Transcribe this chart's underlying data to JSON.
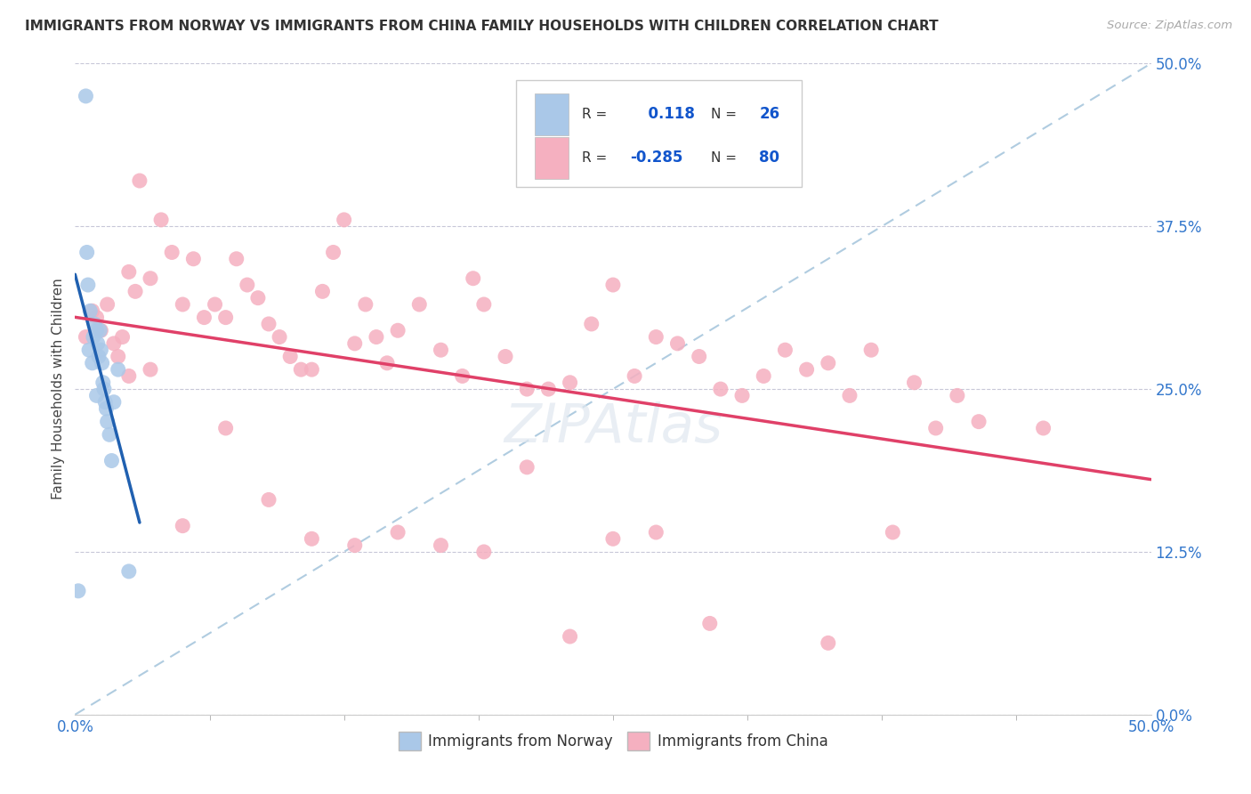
{
  "title": "IMMIGRANTS FROM NORWAY VS IMMIGRANTS FROM CHINA FAMILY HOUSEHOLDS WITH CHILDREN CORRELATION CHART",
  "source": "Source: ZipAtlas.com",
  "ylabel": "Family Households with Children",
  "legend_norway": "Immigrants from Norway",
  "legend_china": "Immigrants from China",
  "R_norway": 0.118,
  "N_norway": 26,
  "R_china": -0.285,
  "N_china": 80,
  "norway_color": "#aac8e8",
  "china_color": "#f5b0c0",
  "norway_line_color": "#2060b0",
  "china_line_color": "#e04068",
  "diag_color": "#b0cce0",
  "background_color": "#ffffff",
  "grid_color": "#c8c8d8",
  "xlim": [
    0,
    50
  ],
  "ylim": [
    0,
    50
  ],
  "yticks": [
    0.0,
    12.5,
    25.0,
    37.5,
    50.0
  ],
  "ytick_labels": [
    "0.0%",
    "12.5%",
    "25.0%",
    "37.5%",
    "50.0%"
  ],
  "xtick_labels": [
    "0.0%",
    "50.0%"
  ],
  "norway_x": [
    0.15,
    0.5,
    0.55,
    0.6,
    0.65,
    0.7,
    0.8,
    0.85,
    0.9,
    1.0,
    1.0,
    1.05,
    1.1,
    1.15,
    1.2,
    1.25,
    1.3,
    1.35,
    1.4,
    1.45,
    1.5,
    1.6,
    1.7,
    1.8,
    2.0,
    2.5
  ],
  "norway_y": [
    9.5,
    47.5,
    35.5,
    33.0,
    28.0,
    31.0,
    27.0,
    29.0,
    30.0,
    24.5,
    29.5,
    28.5,
    27.5,
    29.5,
    28.0,
    27.0,
    25.5,
    25.0,
    24.0,
    23.5,
    22.5,
    21.5,
    19.5,
    24.0,
    26.5,
    11.0
  ],
  "china_x": [
    0.5,
    0.8,
    1.0,
    1.2,
    1.5,
    1.8,
    2.0,
    2.2,
    2.5,
    2.8,
    3.0,
    3.5,
    4.0,
    4.5,
    5.0,
    5.5,
    6.0,
    6.5,
    7.0,
    7.5,
    8.0,
    8.5,
    9.0,
    9.5,
    10.0,
    10.5,
    11.0,
    11.5,
    12.0,
    12.5,
    13.0,
    13.5,
    14.0,
    14.5,
    15.0,
    16.0,
    17.0,
    18.0,
    18.5,
    19.0,
    20.0,
    21.0,
    22.0,
    23.0,
    24.0,
    25.0,
    26.0,
    27.0,
    28.0,
    29.0,
    30.0,
    31.0,
    32.0,
    33.0,
    34.0,
    35.0,
    36.0,
    37.0,
    38.0,
    39.0,
    40.0,
    41.0,
    42.0,
    2.5,
    3.5,
    5.0,
    7.0,
    9.0,
    11.0,
    13.0,
    15.0,
    17.0,
    19.0,
    21.0,
    23.0,
    25.0,
    27.0,
    29.5,
    35.0,
    45.0
  ],
  "china_y": [
    29.0,
    31.0,
    30.5,
    29.5,
    31.5,
    28.5,
    27.5,
    29.0,
    34.0,
    32.5,
    41.0,
    33.5,
    38.0,
    35.5,
    31.5,
    35.0,
    30.5,
    31.5,
    30.5,
    35.0,
    33.0,
    32.0,
    30.0,
    29.0,
    27.5,
    26.5,
    26.5,
    32.5,
    35.5,
    38.0,
    28.5,
    31.5,
    29.0,
    27.0,
    29.5,
    31.5,
    28.0,
    26.0,
    33.5,
    31.5,
    27.5,
    25.0,
    25.0,
    25.5,
    30.0,
    33.0,
    26.0,
    29.0,
    28.5,
    27.5,
    25.0,
    24.5,
    26.0,
    28.0,
    26.5,
    27.0,
    24.5,
    28.0,
    14.0,
    25.5,
    22.0,
    24.5,
    22.5,
    26.0,
    26.5,
    14.5,
    22.0,
    16.5,
    13.5,
    13.0,
    14.0,
    13.0,
    12.5,
    19.0,
    6.0,
    13.5,
    14.0,
    7.0,
    5.5,
    22.0
  ]
}
